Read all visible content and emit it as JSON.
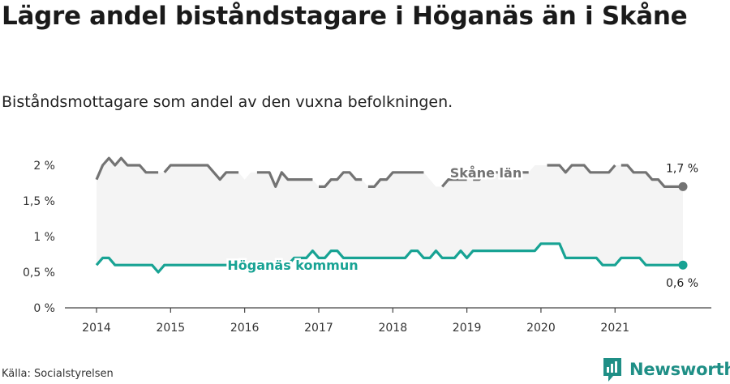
{
  "header": {
    "title": "Lägre andel biståndstagare i Höganäs än i Skåne",
    "subtitle": "Biståndsmottagare som andel av den vuxna befolkningen."
  },
  "footer": {
    "source": "Källa: Socialstyrelsen",
    "brand": "Newsworthy"
  },
  "colors": {
    "skane": "#737373",
    "hoganas": "#18a394",
    "band": "#f4f4f4",
    "brand": "#1f8f86"
  },
  "chart_data": {
    "type": "line",
    "x_unit": "year",
    "x_ticks": [
      "2014",
      "2015",
      "2016",
      "2017",
      "2018",
      "2019",
      "2020",
      "2021"
    ],
    "y_ticks": [
      "0 %",
      "0,5 %",
      "1 %",
      "1,5 %",
      "2 %"
    ],
    "ylim": [
      0,
      2
    ],
    "grid": false,
    "series": [
      {
        "name": "Skåne län",
        "end_label": "1,7 %",
        "gaps": [
          [
            2014.8,
            2014.95
          ],
          [
            2015.95,
            2016.2
          ],
          [
            2016.9,
            2017.0
          ],
          [
            2017.55,
            2017.7
          ],
          [
            2018.4,
            2018.65
          ],
          [
            2019.0,
            2019.12
          ],
          [
            2019.4,
            2019.6
          ],
          [
            2019.85,
            2020.1
          ],
          [
            2020.3,
            2020.35
          ],
          [
            2021.0,
            2021.05
          ]
        ],
        "points": [
          [
            2014.0,
            1.8
          ],
          [
            2014.083,
            2.0
          ],
          [
            2014.167,
            2.1
          ],
          [
            2014.25,
            2.0
          ],
          [
            2014.333,
            2.1
          ],
          [
            2014.417,
            2.0
          ],
          [
            2014.5,
            2.0
          ],
          [
            2014.583,
            2.0
          ],
          [
            2014.667,
            1.9
          ],
          [
            2014.75,
            1.9
          ],
          [
            2014.833,
            1.9
          ],
          [
            2014.917,
            1.9
          ],
          [
            2015.0,
            2.0
          ],
          [
            2015.083,
            2.0
          ],
          [
            2015.167,
            2.0
          ],
          [
            2015.25,
            2.0
          ],
          [
            2015.333,
            2.0
          ],
          [
            2015.417,
            2.0
          ],
          [
            2015.5,
            2.0
          ],
          [
            2015.583,
            1.9
          ],
          [
            2015.667,
            1.8
          ],
          [
            2015.75,
            1.9
          ],
          [
            2015.833,
            1.9
          ],
          [
            2015.917,
            1.9
          ],
          [
            2016.0,
            1.8
          ],
          [
            2016.083,
            1.9
          ],
          [
            2016.167,
            1.9
          ],
          [
            2016.25,
            1.9
          ],
          [
            2016.333,
            1.9
          ],
          [
            2016.417,
            1.7
          ],
          [
            2016.5,
            1.9
          ],
          [
            2016.583,
            1.8
          ],
          [
            2016.667,
            1.8
          ],
          [
            2016.75,
            1.8
          ],
          [
            2016.833,
            1.8
          ],
          [
            2016.917,
            1.8
          ],
          [
            2017.0,
            1.7
          ],
          [
            2017.083,
            1.7
          ],
          [
            2017.167,
            1.8
          ],
          [
            2017.25,
            1.8
          ],
          [
            2017.333,
            1.9
          ],
          [
            2017.417,
            1.9
          ],
          [
            2017.5,
            1.8
          ],
          [
            2017.583,
            1.8
          ],
          [
            2017.667,
            1.7
          ],
          [
            2017.75,
            1.7
          ],
          [
            2017.833,
            1.8
          ],
          [
            2017.917,
            1.8
          ],
          [
            2018.0,
            1.9
          ],
          [
            2018.083,
            1.9
          ],
          [
            2018.167,
            1.9
          ],
          [
            2018.25,
            1.9
          ],
          [
            2018.333,
            1.9
          ],
          [
            2018.417,
            1.9
          ],
          [
            2018.5,
            1.8
          ],
          [
            2018.583,
            1.7
          ],
          [
            2018.667,
            1.7
          ],
          [
            2018.75,
            1.8
          ],
          [
            2018.833,
            1.8
          ],
          [
            2018.917,
            1.8
          ],
          [
            2019.0,
            1.8
          ],
          [
            2019.083,
            1.8
          ],
          [
            2019.167,
            1.8
          ],
          [
            2019.25,
            1.9
          ],
          [
            2019.333,
            1.9
          ],
          [
            2019.417,
            1.9
          ],
          [
            2019.5,
            1.9
          ],
          [
            2019.583,
            1.9
          ],
          [
            2019.667,
            1.9
          ],
          [
            2019.75,
            1.9
          ],
          [
            2019.833,
            1.9
          ],
          [
            2019.917,
            2.0
          ],
          [
            2020.0,
            2.0
          ],
          [
            2020.083,
            2.0
          ],
          [
            2020.167,
            2.0
          ],
          [
            2020.25,
            2.0
          ],
          [
            2020.333,
            1.9
          ],
          [
            2020.417,
            2.0
          ],
          [
            2020.5,
            2.0
          ],
          [
            2020.583,
            2.0
          ],
          [
            2020.667,
            1.9
          ],
          [
            2020.75,
            1.9
          ],
          [
            2020.833,
            1.9
          ],
          [
            2020.917,
            1.9
          ],
          [
            2021.0,
            2.0
          ],
          [
            2021.083,
            2.0
          ],
          [
            2021.167,
            2.0
          ],
          [
            2021.25,
            1.9
          ],
          [
            2021.333,
            1.9
          ],
          [
            2021.417,
            1.9
          ],
          [
            2021.5,
            1.8
          ],
          [
            2021.583,
            1.8
          ],
          [
            2021.667,
            1.7
          ],
          [
            2021.75,
            1.7
          ],
          [
            2021.833,
            1.7
          ],
          [
            2021.917,
            1.7
          ]
        ]
      },
      {
        "name": "Höganäs kommun",
        "end_label": "0,6 %",
        "gaps": [],
        "points": [
          [
            2014.0,
            0.6
          ],
          [
            2014.083,
            0.7
          ],
          [
            2014.167,
            0.7
          ],
          [
            2014.25,
            0.6
          ],
          [
            2014.333,
            0.6
          ],
          [
            2014.417,
            0.6
          ],
          [
            2014.5,
            0.6
          ],
          [
            2014.583,
            0.6
          ],
          [
            2014.667,
            0.6
          ],
          [
            2014.75,
            0.6
          ],
          [
            2014.833,
            0.5
          ],
          [
            2014.917,
            0.6
          ],
          [
            2015.0,
            0.6
          ],
          [
            2015.083,
            0.6
          ],
          [
            2015.167,
            0.6
          ],
          [
            2015.25,
            0.6
          ],
          [
            2015.333,
            0.6
          ],
          [
            2015.417,
            0.6
          ],
          [
            2015.5,
            0.6
          ],
          [
            2015.583,
            0.6
          ],
          [
            2015.667,
            0.6
          ],
          [
            2015.75,
            0.6
          ],
          [
            2015.833,
            0.6
          ],
          [
            2015.917,
            0.6
          ],
          [
            2016.0,
            0.6
          ],
          [
            2016.083,
            0.6
          ],
          [
            2016.167,
            0.6
          ],
          [
            2016.25,
            0.6
          ],
          [
            2016.333,
            0.6
          ],
          [
            2016.417,
            0.6
          ],
          [
            2016.5,
            0.6
          ],
          [
            2016.583,
            0.6
          ],
          [
            2016.667,
            0.7
          ],
          [
            2016.75,
            0.7
          ],
          [
            2016.833,
            0.7
          ],
          [
            2016.917,
            0.8
          ],
          [
            2017.0,
            0.7
          ],
          [
            2017.083,
            0.7
          ],
          [
            2017.167,
            0.8
          ],
          [
            2017.25,
            0.8
          ],
          [
            2017.333,
            0.7
          ],
          [
            2017.417,
            0.7
          ],
          [
            2017.5,
            0.7
          ],
          [
            2017.583,
            0.7
          ],
          [
            2017.667,
            0.7
          ],
          [
            2017.75,
            0.7
          ],
          [
            2017.833,
            0.7
          ],
          [
            2017.917,
            0.7
          ],
          [
            2018.0,
            0.7
          ],
          [
            2018.083,
            0.7
          ],
          [
            2018.167,
            0.7
          ],
          [
            2018.25,
            0.8
          ],
          [
            2018.333,
            0.8
          ],
          [
            2018.417,
            0.7
          ],
          [
            2018.5,
            0.7
          ],
          [
            2018.583,
            0.8
          ],
          [
            2018.667,
            0.7
          ],
          [
            2018.75,
            0.7
          ],
          [
            2018.833,
            0.7
          ],
          [
            2018.917,
            0.8
          ],
          [
            2019.0,
            0.7
          ],
          [
            2019.083,
            0.8
          ],
          [
            2019.167,
            0.8
          ],
          [
            2019.25,
            0.8
          ],
          [
            2019.333,
            0.8
          ],
          [
            2019.417,
            0.8
          ],
          [
            2019.5,
            0.8
          ],
          [
            2019.583,
            0.8
          ],
          [
            2019.667,
            0.8
          ],
          [
            2019.75,
            0.8
          ],
          [
            2019.833,
            0.8
          ],
          [
            2019.917,
            0.8
          ],
          [
            2020.0,
            0.9
          ],
          [
            2020.083,
            0.9
          ],
          [
            2020.167,
            0.9
          ],
          [
            2020.25,
            0.9
          ],
          [
            2020.333,
            0.7
          ],
          [
            2020.417,
            0.7
          ],
          [
            2020.5,
            0.7
          ],
          [
            2020.583,
            0.7
          ],
          [
            2020.667,
            0.7
          ],
          [
            2020.75,
            0.7
          ],
          [
            2020.833,
            0.6
          ],
          [
            2020.917,
            0.6
          ],
          [
            2021.0,
            0.6
          ],
          [
            2021.083,
            0.7
          ],
          [
            2021.167,
            0.7
          ],
          [
            2021.25,
            0.7
          ],
          [
            2021.333,
            0.7
          ],
          [
            2021.417,
            0.6
          ],
          [
            2021.5,
            0.6
          ],
          [
            2021.583,
            0.6
          ],
          [
            2021.667,
            0.6
          ],
          [
            2021.75,
            0.6
          ],
          [
            2021.833,
            0.6
          ],
          [
            2021.917,
            0.6
          ]
        ]
      }
    ]
  }
}
